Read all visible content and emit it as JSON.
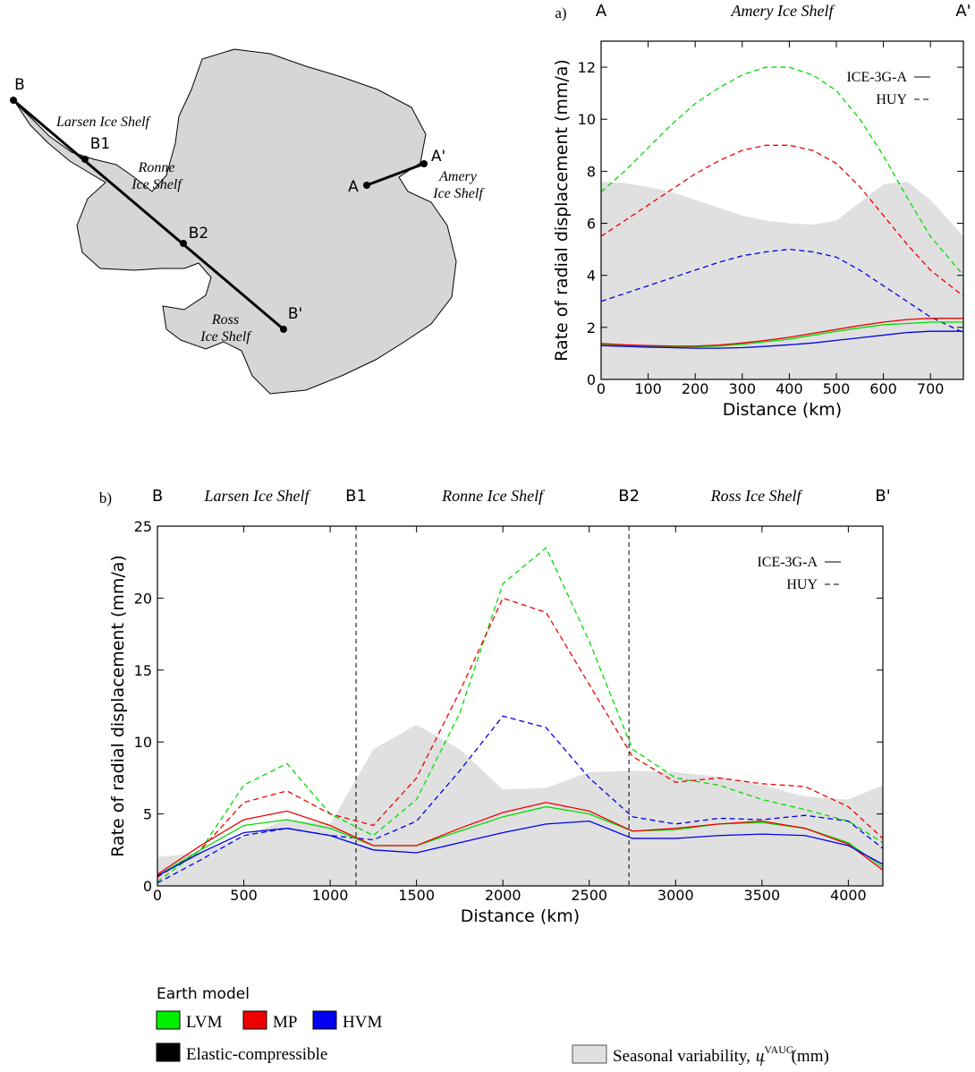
{
  "map": {
    "points": [
      "B",
      "B1",
      "B2",
      "B'",
      "A",
      "A'"
    ],
    "shelves": [
      [
        "Larsen Ice Shelf"
      ],
      [
        "Ronne",
        "Ice Shelf"
      ],
      [
        "Ross",
        "Ice Shelf"
      ],
      [
        "Amery",
        "Ice Shelf"
      ]
    ]
  },
  "chart_data": [
    {
      "type": "line",
      "panel": "a)",
      "x_label": "Distance (km)",
      "y_label": "Rate of radial displacement (mm/a)",
      "profile_points": [
        {
          "label": "A",
          "x": 0
        },
        {
          "label": "A'",
          "x": 770
        }
      ],
      "shelves": [
        "Amery Ice Shelf"
      ],
      "x": [
        0,
        50,
        100,
        150,
        200,
        250,
        300,
        350,
        400,
        450,
        500,
        550,
        600,
        650,
        700,
        770
      ],
      "xlim": [
        0,
        770
      ],
      "xticks": [
        0,
        100,
        200,
        300,
        400,
        500,
        600,
        700
      ],
      "ylim": [
        0,
        13
      ],
      "yticks": [
        0,
        2,
        4,
        6,
        8,
        10,
        12
      ],
      "line_legend": [
        {
          "name": "ICE-3G-A",
          "dash": false
        },
        {
          "name": "HUY",
          "dash": true
        }
      ],
      "seasonal_variability": {
        "color": "#e0e0e0",
        "values": [
          7.6,
          7.55,
          7.4,
          7.2,
          6.9,
          6.6,
          6.3,
          6.1,
          6.0,
          5.95,
          6.1,
          6.8,
          7.5,
          7.6,
          6.9,
          5.5
        ]
      },
      "series": [
        {
          "earth_model": "LVM",
          "ice_model": "HUY",
          "color": "#00dd00",
          "values": [
            7.2,
            8.0,
            8.9,
            9.8,
            10.6,
            11.2,
            11.7,
            12.0,
            12.0,
            11.7,
            11.1,
            10.0,
            8.6,
            7.0,
            5.5,
            4.0
          ]
        },
        {
          "earth_model": "MP",
          "ice_model": "HUY",
          "color": "#ee0000",
          "values": [
            5.5,
            6.1,
            6.7,
            7.3,
            7.9,
            8.4,
            8.8,
            9.0,
            9.0,
            8.8,
            8.3,
            7.4,
            6.3,
            5.2,
            4.2,
            3.2
          ]
        },
        {
          "earth_model": "HVM",
          "ice_model": "HUY",
          "color": "#0000ee",
          "values": [
            3.0,
            3.3,
            3.6,
            3.9,
            4.2,
            4.5,
            4.75,
            4.9,
            5.0,
            4.9,
            4.7,
            4.2,
            3.6,
            3.0,
            2.4,
            1.8
          ]
        },
        {
          "earth_model": "LVM",
          "ice_model": "ICE-3G-A",
          "color": "#00dd00",
          "values": [
            1.35,
            1.3,
            1.28,
            1.25,
            1.25,
            1.28,
            1.35,
            1.45,
            1.55,
            1.7,
            1.85,
            1.98,
            2.1,
            2.15,
            2.2,
            2.2
          ]
        },
        {
          "earth_model": "MP",
          "ice_model": "ICE-3G-A",
          "color": "#ee0000",
          "values": [
            1.38,
            1.33,
            1.3,
            1.28,
            1.28,
            1.32,
            1.4,
            1.5,
            1.62,
            1.77,
            1.92,
            2.07,
            2.2,
            2.3,
            2.35,
            2.35
          ]
        },
        {
          "earth_model": "HVM",
          "ice_model": "ICE-3G-A",
          "color": "#0000ee",
          "values": [
            1.3,
            1.27,
            1.24,
            1.22,
            1.2,
            1.2,
            1.22,
            1.27,
            1.33,
            1.4,
            1.5,
            1.6,
            1.7,
            1.8,
            1.85,
            1.85
          ]
        }
      ]
    },
    {
      "type": "line",
      "panel": "b)",
      "x_label": "Distance (km)",
      "y_label": "Rate of radial displacement (mm/a)",
      "profile_points": [
        {
          "label": "B",
          "x": 0
        },
        {
          "label": "B1",
          "x": 1150
        },
        {
          "label": "B2",
          "x": 2730
        },
        {
          "label": "B'",
          "x": 4200
        }
      ],
      "shelves": [
        "Larsen Ice Shelf",
        "Ronne Ice Shelf",
        "Ross Ice Shelf"
      ],
      "x": [
        0,
        250,
        500,
        750,
        1000,
        1250,
        1500,
        1750,
        2000,
        2250,
        2500,
        2750,
        3000,
        3250,
        3500,
        3750,
        4000,
        4200
      ],
      "xlim": [
        0,
        4200
      ],
      "xticks": [
        0,
        500,
        1000,
        1500,
        2000,
        2500,
        3000,
        3500,
        4000
      ],
      "ylim": [
        0,
        25
      ],
      "yticks": [
        0,
        5,
        10,
        15,
        20,
        25
      ],
      "line_legend": [
        {
          "name": "ICE-3G-A",
          "dash": false
        },
        {
          "name": "HUY",
          "dash": true
        }
      ],
      "seasonal_variability": {
        "color": "#e0e0e0",
        "values": [
          2.0,
          2.3,
          3.5,
          4.6,
          4.3,
          9.5,
          11.2,
          9.5,
          6.7,
          6.8,
          7.9,
          8.0,
          7.9,
          7.6,
          7.0,
          6.2,
          6.0,
          7.0
        ]
      },
      "series": [
        {
          "earth_model": "LVM",
          "ice_model": "HUY",
          "color": "#00dd00",
          "values": [
            0.3,
            2.5,
            7.0,
            8.5,
            5.0,
            3.5,
            6.0,
            12.0,
            21.0,
            23.5,
            17.0,
            9.5,
            7.5,
            7.0,
            6.0,
            5.3,
            4.5,
            3.0
          ]
        },
        {
          "earth_model": "MP",
          "ice_model": "HUY",
          "color": "#ee0000",
          "values": [
            0.6,
            2.5,
            5.8,
            6.6,
            5.0,
            4.2,
            7.5,
            13.5,
            20.0,
            19.0,
            14.0,
            9.0,
            7.2,
            7.5,
            7.1,
            6.9,
            5.5,
            3.3
          ]
        },
        {
          "earth_model": "HVM",
          "ice_model": "HUY",
          "color": "#0000ee",
          "values": [
            0.2,
            1.8,
            3.5,
            4.0,
            3.5,
            3.2,
            4.5,
            8.0,
            11.8,
            11.0,
            7.5,
            4.8,
            4.3,
            4.7,
            4.6,
            4.9,
            4.5,
            2.6
          ]
        },
        {
          "earth_model": "LVM",
          "ice_model": "ICE-3G-A",
          "color": "#00dd00",
          "values": [
            0.7,
            2.5,
            4.2,
            4.6,
            4.0,
            2.8,
            2.8,
            3.8,
            4.8,
            5.5,
            5.0,
            3.8,
            3.9,
            4.3,
            4.4,
            4.0,
            3.0,
            1.3
          ]
        },
        {
          "earth_model": "MP",
          "ice_model": "ICE-3G-A",
          "color": "#ee0000",
          "values": [
            0.8,
            2.8,
            4.6,
            5.2,
            4.2,
            2.8,
            2.8,
            4.0,
            5.1,
            5.8,
            5.2,
            3.8,
            4.0,
            4.3,
            4.5,
            4.0,
            2.9,
            1.1
          ]
        },
        {
          "earth_model": "HVM",
          "ice_model": "ICE-3G-A",
          "color": "#0000ee",
          "values": [
            0.7,
            2.3,
            3.7,
            4.0,
            3.5,
            2.5,
            2.3,
            3.0,
            3.7,
            4.3,
            4.5,
            3.3,
            3.3,
            3.5,
            3.6,
            3.5,
            2.8,
            1.5
          ]
        }
      ]
    }
  ],
  "legend": {
    "title": "Earth model",
    "models": [
      {
        "name": "LVM",
        "color": "#00ee00"
      },
      {
        "name": "MP",
        "color": "#ee0000"
      },
      {
        "name": "HVM",
        "color": "#0000ee"
      }
    ],
    "elastic": {
      "name": "Elastic-compressible",
      "color": "#000000"
    },
    "seasonal": {
      "color": "#e0e0e0",
      "text": "Seasonal variability,",
      "symbol": "u",
      "sub": "r",
      "sup": "VAUG",
      "unit": "(mm)"
    }
  }
}
